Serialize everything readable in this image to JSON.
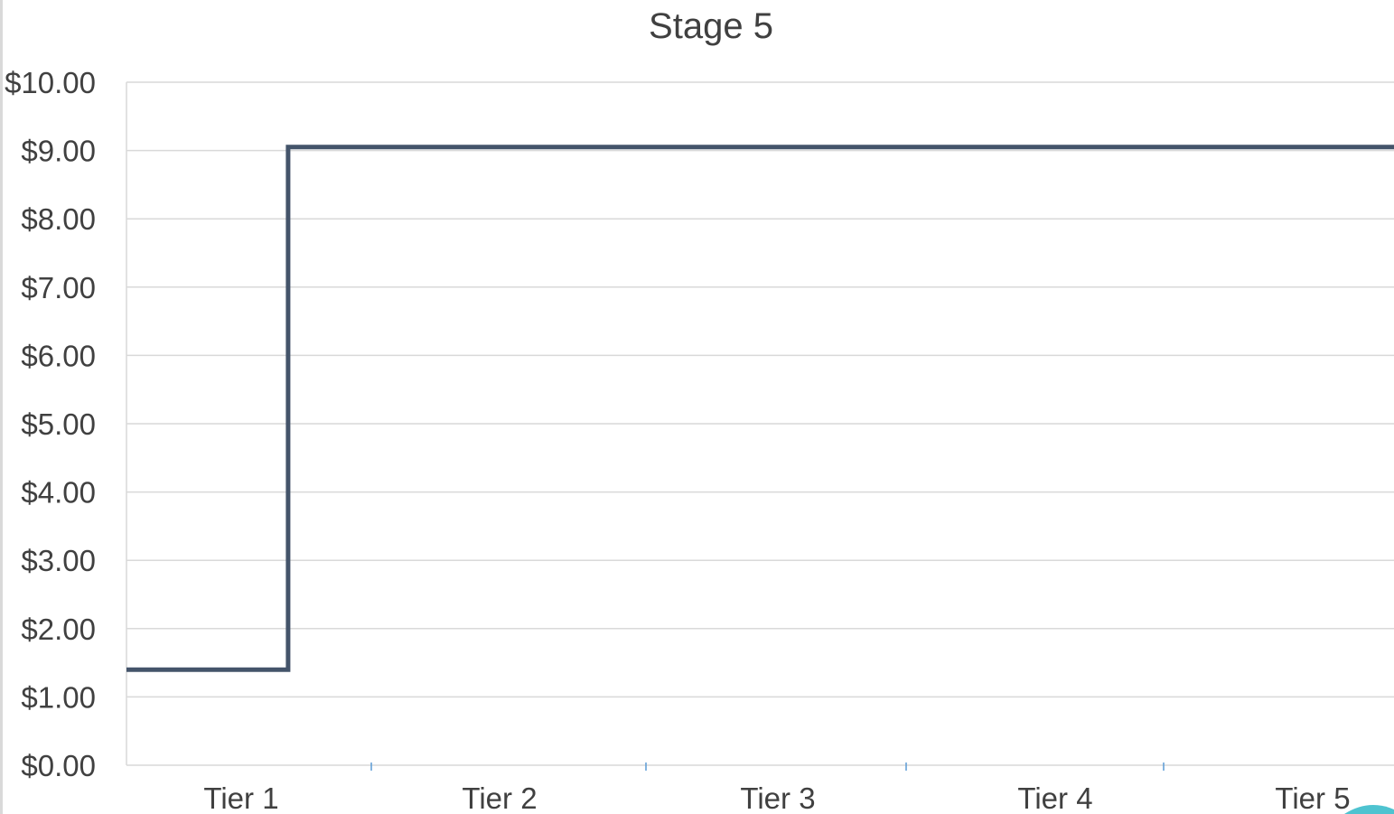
{
  "chart_data": {
    "type": "line",
    "subtype": "step",
    "title": "Stage 5",
    "xlabel": "",
    "ylabel": "",
    "categories": [
      "Tier 1",
      "Tier 2",
      "Tier 3",
      "Tier 4",
      "Tier 5"
    ],
    "y_ticks": [
      "$0.00",
      "$1.00",
      "$2.00",
      "$3.00",
      "$4.00",
      "$5.00",
      "$6.00",
      "$7.00",
      "$8.00",
      "$9.00",
      "$10.00"
    ],
    "ylim": [
      0,
      10
    ],
    "grid": true,
    "legend": "none",
    "series": [
      {
        "color": "#44546a",
        "points": [
          {
            "x": 0.0,
            "y": 1.4
          },
          {
            "x": 0.66,
            "y": 1.4
          },
          {
            "x": 0.66,
            "y": 9.05
          },
          {
            "x": 4.93,
            "y": 9.05
          }
        ]
      }
    ],
    "colors": {
      "line": "#44546a",
      "grid": "#d9d9d9",
      "axis": "#d9d9d9",
      "tick_mark": "#5b9bd5",
      "text": "#404040",
      "corner_accent": "#4ec3d0"
    }
  }
}
